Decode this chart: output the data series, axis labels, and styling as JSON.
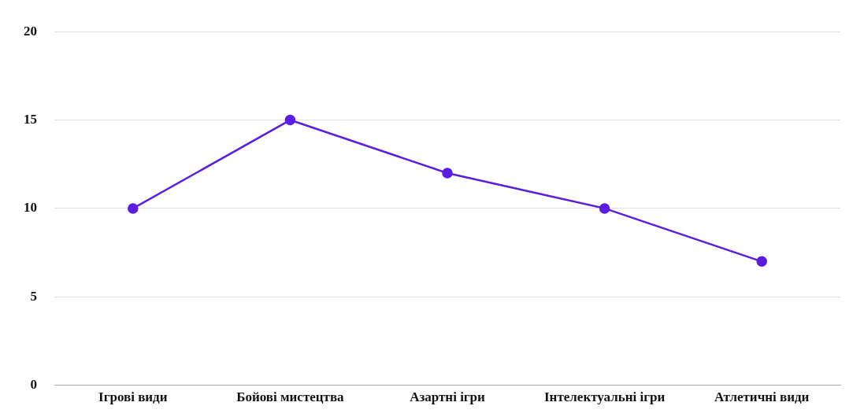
{
  "chart_data": {
    "type": "line",
    "categories": [
      "Ігрові види",
      "Бойові мистецтва",
      "Азартні ігри",
      "Інтелектуальні ігри",
      "Атлетичні види"
    ],
    "series": [
      {
        "color": "#5b1ee0",
        "values": [
          10,
          15,
          12,
          10,
          7
        ]
      }
    ],
    "ylim": [
      0,
      20
    ],
    "yticks": [
      0,
      5,
      10,
      15,
      20
    ],
    "grid": "y",
    "legend": false,
    "marker": "circle",
    "line_style": "solid"
  }
}
